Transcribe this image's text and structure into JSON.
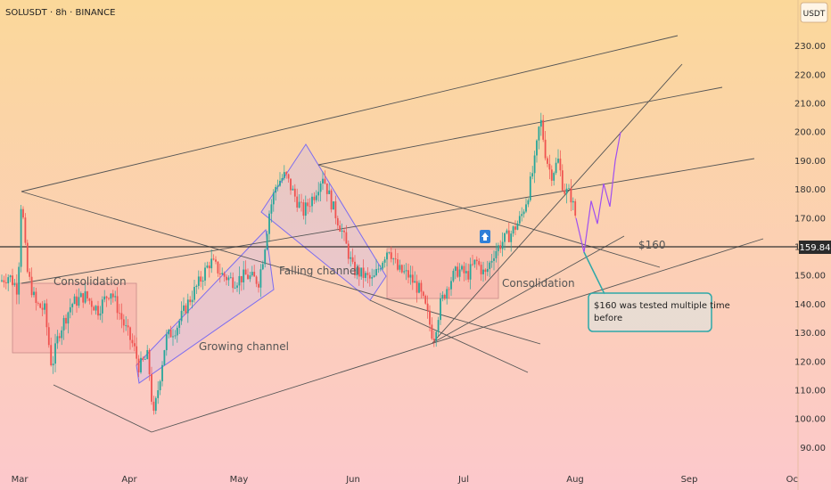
{
  "header": {
    "title": "SOLUSDT · 8h · BINANCE",
    "currency_button": "USDT"
  },
  "chart_data": {
    "type": "candlestick",
    "symbol": "SOLUSDT",
    "interval": "8h",
    "exchange": "BINANCE",
    "ylim": [
      85,
      238
    ],
    "y_ticks": [
      90,
      100,
      110,
      120,
      130,
      140,
      150,
      160,
      170,
      180,
      190,
      200,
      210,
      220,
      230
    ],
    "x_ticks": [
      "Mar",
      "Apr",
      "May",
      "Jun",
      "Jul",
      "Aug",
      "Sep",
      "Oc"
    ],
    "current_price": "159.84",
    "horizontal_level": 160,
    "candle_path": [
      [
        0,
        148
      ],
      [
        10,
        150
      ],
      [
        20,
        145
      ],
      [
        24,
        178
      ],
      [
        30,
        152
      ],
      [
        40,
        140
      ],
      [
        50,
        138
      ],
      [
        58,
        118
      ],
      [
        66,
        130
      ],
      [
        80,
        140
      ],
      [
        95,
        143
      ],
      [
        110,
        138
      ],
      [
        124,
        145
      ],
      [
        140,
        132
      ],
      [
        150,
        125
      ],
      [
        156,
        118
      ],
      [
        166,
        122
      ],
      [
        172,
        100
      ],
      [
        178,
        112
      ],
      [
        186,
        128
      ],
      [
        198,
        132
      ],
      [
        210,
        140
      ],
      [
        224,
        148
      ],
      [
        236,
        155
      ],
      [
        250,
        150
      ],
      [
        262,
        148
      ],
      [
        276,
        150
      ],
      [
        290,
        148
      ],
      [
        296,
        158
      ],
      [
        302,
        172
      ],
      [
        310,
        182
      ],
      [
        320,
        185
      ],
      [
        330,
        178
      ],
      [
        340,
        172
      ],
      [
        352,
        178
      ],
      [
        362,
        185
      ],
      [
        372,
        175
      ],
      [
        384,
        165
      ],
      [
        396,
        152
      ],
      [
        408,
        150
      ],
      [
        418,
        148
      ],
      [
        428,
        155
      ],
      [
        436,
        160
      ],
      [
        446,
        152
      ],
      [
        458,
        150
      ],
      [
        470,
        145
      ],
      [
        478,
        138
      ],
      [
        486,
        128
      ],
      [
        494,
        140
      ],
      [
        504,
        148
      ],
      [
        514,
        152
      ],
      [
        524,
        150
      ],
      [
        534,
        155
      ],
      [
        544,
        150
      ],
      [
        554,
        158
      ],
      [
        564,
        162
      ],
      [
        574,
        165
      ],
      [
        584,
        170
      ],
      [
        592,
        178
      ],
      [
        600,
        190
      ],
      [
        606,
        205
      ],
      [
        612,
        192
      ],
      [
        618,
        185
      ],
      [
        626,
        190
      ],
      [
        632,
        180
      ],
      [
        640,
        178
      ],
      [
        646,
        170
      ]
    ],
    "projection_path": [
      [
        646,
        170
      ],
      [
        655,
        158
      ],
      [
        663,
        176
      ],
      [
        670,
        168
      ],
      [
        677,
        182
      ],
      [
        684,
        174
      ],
      [
        690,
        190
      ],
      [
        696,
        200
      ]
    ],
    "annotations": [
      {
        "text": "Consolidation"
      },
      {
        "text": "Growing channel"
      },
      {
        "text": "Falling channel"
      },
      {
        "text": "Consolidation"
      },
      {
        "text": "$160"
      },
      {
        "text": "$160 was tested multiple time before"
      }
    ],
    "colors": {
      "up": "#26a69a",
      "down": "#ef5350",
      "trendline": "#555555",
      "channel": "#7c6cf0",
      "level_line": "#333333",
      "callout": "#2ea8a8",
      "price_tag": "#2b2b2b"
    }
  }
}
